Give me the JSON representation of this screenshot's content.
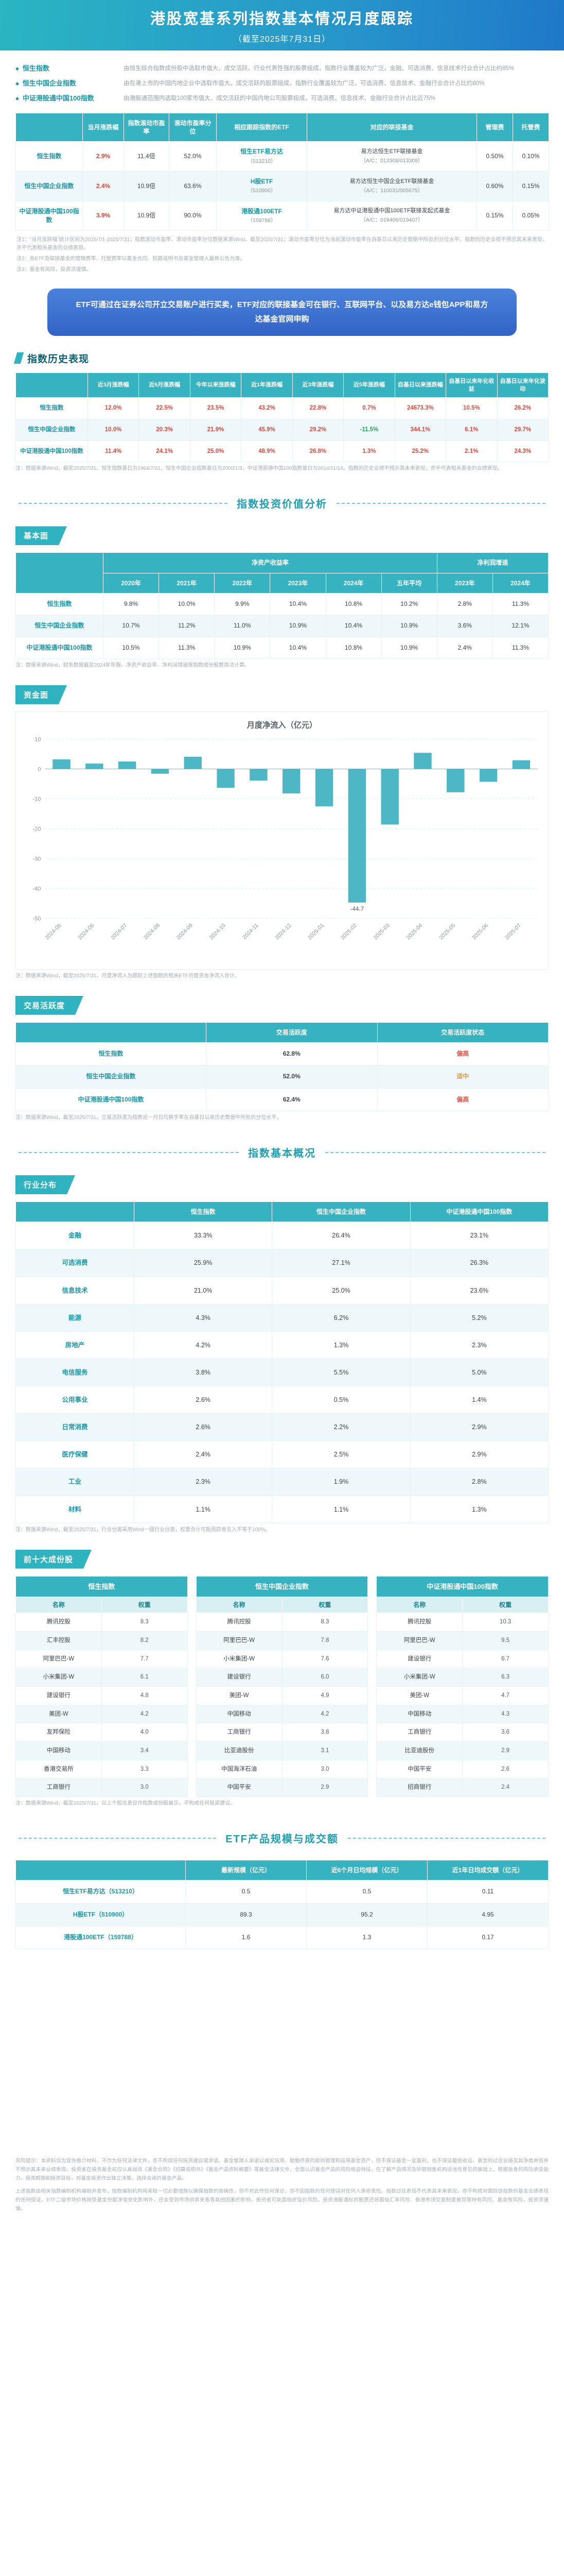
{
  "banner": {
    "title": "港股宽基系列指数基本情况月度跟踪",
    "subtitle": "（截至2025年7月31日）"
  },
  "intro": {
    "items": [
      {
        "term": "恒生指数",
        "desc": "由恒生综合指数成份股中选取市值大、成交活跃、行业代表性强的股票组成，指数行业覆盖较为广泛，金融、可选消费、信息技术行业合计占比约85%"
      },
      {
        "term": "恒生中国企业指数",
        "desc": "由在港上市的中国内地企业中选取市值大、成交活跃的股票组成，指数行业覆盖较为广泛，可选消费、信息技术、金融行业合计占比约80%"
      },
      {
        "term": "中证港股通中国100指数",
        "desc": "由港股通范围内选取100家市值大、成交活跃的中国内地公司股票组成，可选消费、信息技术、金融行业合计占比近75%"
      }
    ]
  },
  "overview": {
    "headers": [
      "当月涨跌幅",
      "指数滚动市盈率",
      "滚动市盈率分位",
      "相应跟踪指数的ETF",
      "对应的联接基金",
      "管理费",
      "托管费"
    ],
    "rows": [
      {
        "name": "恒生指数",
        "chg": "2.9%",
        "pe": "11.4倍",
        "pe_pct": "52.0%",
        "etf": "恒生ETF易方达",
        "etf_code": "（513210）",
        "feeder": "易方达恒生ETF联接基金",
        "feeder_code": "（A/C：013308/013309）",
        "mgmt": "0.50%",
        "cust": "0.10%"
      },
      {
        "name": "恒生中国企业指数",
        "chg": "2.4%",
        "pe": "10.9倍",
        "pe_pct": "63.6%",
        "etf": "H股ETF",
        "etf_code": "（510900）",
        "feeder": "易方达恒生中国企业ETF联接基金",
        "feeder_code": "（A/C：110031/005675）",
        "mgmt": "0.60%",
        "cust": "0.15%"
      },
      {
        "name": "中证港股通中国100指数",
        "chg": "3.9%",
        "pe": "10.9倍",
        "pe_pct": "90.0%",
        "etf": "港股通100ETF",
        "etf_code": "（159788）",
        "feeder": "易方达中证港股通中国100ETF联接发起式基金",
        "feeder_code": "（A/C：019406/019407）",
        "mgmt": "0.15%",
        "cust": "0.05%"
      }
    ],
    "notes": [
      "注1：“当月涨跌幅”统计区间为2025/7/1-2025/7/31；指数滚动市盈率、滚动市盈率分位数据来源Wind，截至2025/7/31；滚动市盈率分位为当前滚动市盈率在自基日以来历史数据中所处的分位水平。指数的历史业绩不预示其未来表现，亦不代表相关基金的业绩表现。",
      "注2：各ETF及联接基金的管理费率、托管费率以基金合同、招募说明书及基金管理人最新公告为准。",
      "注3：基金有风险，投资须谨慎。"
    ]
  },
  "etf_box": {
    "text": "ETF可通过在证券公司开立交易账户进行买卖，ETF对应的联接基金可在银行、互联网平台、以及易方达e钱包APP和易方达基金官网申购"
  },
  "history": {
    "section_title": "指数历史表现",
    "headers": [
      "近3月涨跌幅",
      "近6月涨跌幅",
      "今年以来涨跌幅",
      "近1年涨跌幅",
      "近3年涨跌幅",
      "近5年涨跌幅",
      "自基日以来涨跌幅",
      "自基日以来年化收益",
      "自基日以来年化波动"
    ],
    "rows": [
      {
        "name": "恒生指数",
        "values": [
          "12.0%",
          "22.5%",
          "23.5%",
          "43.2%",
          "22.8%",
          "0.7%",
          "24673.3%",
          "10.5%",
          "26.2%"
        ]
      },
      {
        "name": "恒生中国企业指数",
        "values": [
          "10.0%",
          "20.3%",
          "21.9%",
          "45.9%",
          "29.2%",
          "-11.5%",
          "344.1%",
          "6.1%",
          "29.7%"
        ]
      },
      {
        "name": "中证港股通中国100指数",
        "values": [
          "11.4%",
          "24.1%",
          "25.0%",
          "48.9%",
          "26.8%",
          "1.3%",
          "25.2%",
          "2.1%",
          "24.3%"
        ]
      }
    ],
    "note": "注：数据来源Wind，截至2025/7/31。恒生指数基日为1964/7/31，恒生中国企业指数基日为2000/1/3，中证港股通中国100指数基日为2014/11/14。指数的历史业绩不预示其未来表现，亦不代表相关基金的业绩表现。"
  },
  "dividers": {
    "analysis": "指数投资价值分析",
    "overview": "指数基本概况",
    "products": "ETF产品规模与成交额"
  },
  "fundamentals": {
    "tag": "基本面",
    "group1": "净资产收益率",
    "group2": "净利润增速",
    "years1": [
      "2020年",
      "2021年",
      "2022年",
      "2023年",
      "2024年",
      "五年平均"
    ],
    "years2": [
      "2023年",
      "2024年"
    ],
    "rows": [
      {
        "name": "恒生指数",
        "values": [
          "9.8%",
          "10.0%",
          "9.9%",
          "10.4%",
          "10.8%",
          "10.2%",
          "2.8%",
          "11.3%"
        ]
      },
      {
        "name": "恒生中国企业指数",
        "values": [
          "10.7%",
          "11.2%",
          "11.0%",
          "10.9%",
          "10.4%",
          "10.9%",
          "3.6%",
          "12.1%"
        ]
      },
      {
        "name": "中证港股通中国100指数",
        "values": [
          "10.5%",
          "11.3%",
          "10.9%",
          "10.4%",
          "10.8%",
          "10.9%",
          "2.4%",
          "11.3%"
        ]
      }
    ],
    "note": "注：数据来源Wind，财务数据截至2024年年报。净资产收益率、净利润增速按指数成份股整体法计算。"
  },
  "fund_flow": {
    "tag": "资金面",
    "note": "注：数据来源Wind，截至2025/7/31。月度净流入为跟踪上述指数的相关ETF月度资金净流入合计。"
  },
  "chart_data": {
    "type": "bar",
    "title": "月度净流入（亿元）",
    "categories": [
      "2024-05",
      "2024-06",
      "2024-07",
      "2024-08",
      "2024-09",
      "2024-10",
      "2024-11",
      "2024-12",
      "2025-01",
      "2025-02",
      "2025-03",
      "2025-04",
      "2025-05",
      "2025-06",
      "2025-07"
    ],
    "values": [
      3.2,
      1.8,
      2.5,
      -1.6,
      4.1,
      -6.3,
      -3.9,
      -8.2,
      -12.5,
      -44.7,
      -18.6,
      5.4,
      -7.8,
      -4.3,
      2.9
    ],
    "ylim": [
      -50,
      10
    ],
    "xlabel": "",
    "ylabel": "",
    "grid": true,
    "legend": "none",
    "bar_color": "#4db7c6",
    "annotated_min": "-44.7"
  },
  "activity": {
    "tag": "交易活跃度",
    "headers": [
      "交易活跃度",
      "交易活跃度状态"
    ],
    "rows": [
      {
        "name": "恒生指数",
        "value": "62.8%",
        "status": "偏高"
      },
      {
        "name": "恒生中国企业指数",
        "value": "52.0%",
        "status": "适中"
      },
      {
        "name": "中证港股通中国100指数",
        "value": "62.4%",
        "status": "偏高"
      }
    ],
    "status_colors": {
      "偏高": "#e05a4e",
      "适中": "#e8963c"
    },
    "note": "注：数据来源Wind，截至2025/7/31。交易活跃度为指数近一月日均换手率在自基日以来历史数据中所处的分位水平。"
  },
  "industry": {
    "tag": "行业分布",
    "col_headers": [
      "恒生指数",
      "恒生中国企业指数",
      "中证港股通中国100指数"
    ],
    "rows": [
      {
        "name": "金融",
        "values": [
          "33.3%",
          "26.4%",
          "23.1%"
        ]
      },
      {
        "name": "可选消费",
        "values": [
          "25.9%",
          "27.1%",
          "26.3%"
        ]
      },
      {
        "name": "信息技术",
        "values": [
          "21.0%",
          "25.0%",
          "23.6%"
        ]
      },
      {
        "name": "能源",
        "values": [
          "4.3%",
          "6.2%",
          "5.2%"
        ]
      },
      {
        "name": "房地产",
        "values": [
          "4.2%",
          "1.3%",
          "2.3%"
        ]
      },
      {
        "name": "电信服务",
        "values": [
          "3.8%",
          "5.5%",
          "5.0%"
        ]
      },
      {
        "name": "公用事业",
        "values": [
          "2.6%",
          "0.5%",
          "1.4%"
        ]
      },
      {
        "name": "日常消费",
        "values": [
          "2.6%",
          "2.2%",
          "2.9%"
        ]
      },
      {
        "name": "医疗保健",
        "values": [
          "2.4%",
          "2.5%",
          "2.9%"
        ]
      },
      {
        "name": "工业",
        "values": [
          "2.3%",
          "1.9%",
          "2.8%"
        ]
      },
      {
        "name": "材料",
        "values": [
          "1.1%",
          "1.1%",
          "1.3%"
        ]
      }
    ],
    "note": "注：数据来源Wind，截至2025/7/31。行业分类采用Wind一级行业分类，权重合计可能因四舍五入不等于100%。"
  },
  "holdings": {
    "tag": "前十大成份股",
    "name_header": "名称",
    "weight_header": "权重",
    "groups": [
      {
        "index": "恒生指数",
        "rows": [
          [
            "腾讯控股",
            "8.3"
          ],
          [
            "汇丰控股",
            "8.2"
          ],
          [
            "阿里巴巴-W",
            "7.7"
          ],
          [
            "小米集团-W",
            "6.1"
          ],
          [
            "建设银行",
            "4.8"
          ],
          [
            "美团-W",
            "4.2"
          ],
          [
            "友邦保险",
            "4.0"
          ],
          [
            "中国移动",
            "3.4"
          ],
          [
            "香港交易所",
            "3.3"
          ],
          [
            "工商银行",
            "3.0"
          ]
        ]
      },
      {
        "index": "恒生中国企业指数",
        "rows": [
          [
            "腾讯控股",
            "8.3"
          ],
          [
            "阿里巴巴-W",
            "7.8"
          ],
          [
            "小米集团-W",
            "7.6"
          ],
          [
            "建设银行",
            "6.0"
          ],
          [
            "美团-W",
            "4.9"
          ],
          [
            "中国移动",
            "4.2"
          ],
          [
            "工商银行",
            "3.8"
          ],
          [
            "比亚迪股份",
            "3.1"
          ],
          [
            "中国海洋石油",
            "3.0"
          ],
          [
            "中国平安",
            "2.9"
          ]
        ]
      },
      {
        "index": "中证港股通中国100指数",
        "rows": [
          [
            "腾讯控股",
            "10.3"
          ],
          [
            "阿里巴巴-W",
            "9.5"
          ],
          [
            "建设银行",
            "6.7"
          ],
          [
            "小米集团-W",
            "6.3"
          ],
          [
            "美团-W",
            "4.7"
          ],
          [
            "中国移动",
            "4.3"
          ],
          [
            "工商银行",
            "3.6"
          ],
          [
            "比亚迪股份",
            "2.9"
          ],
          [
            "中国平安",
            "2.6"
          ],
          [
            "招商银行",
            "2.4"
          ]
        ]
      }
    ],
    "note": "注：数据来源Wind，截至2025/7/31。以上个股信息仅作指数成份股展示，不构成任何投资建议。"
  },
  "products": {
    "headers": [
      "最新规模（亿元）",
      "近6个月日均规模（亿元）",
      "近1年日均成交额（亿元）"
    ],
    "rows": [
      {
        "name": "恒生ETF易方达（513210）",
        "values": [
          "0.5",
          "0.5",
          "0.11"
        ]
      },
      {
        "name": "H股ETF（510900）",
        "values": [
          "89.3",
          "95.2",
          "4.95"
        ]
      },
      {
        "name": "港股通100ETF（159788）",
        "values": [
          "1.6",
          "1.3",
          "0.17"
        ]
      }
    ]
  },
  "footer": {
    "p1": "风险提示：本资料仅为宣传推介材料，不作为任何法律文件，亦不构成任何投资建议或承诺。基金管理人承诺以诚实信用、勤勉尽责的原则管理和运用基金资产，但不保证基金一定盈利，也不保证最低收益。基金的过往业绩及其净值高低并不预示其未来业绩表现。投资者在投资基金前应认真阅读《基金合同》《招募说明书》《基金产品资料概要》等基金法律文件，全面认识基金产品的风险收益特征，在了解产品情况及听取销售机构适当性意见的基础上，根据自身的风险承受能力、投资期限和投资目标，对基金投资作出独立决策，选择合适的基金产品。",
    "p2": "上述指数由相关指数编制机构编制并发布，指数编制机构将采取一切必要措施以确保指数的准确性，但不对此作任何保证，亦不因指数的任何错误对任何人承担责任。指数过往表现不代表其未来表现，亦不构成对跟踪该指数的基金业绩表现的任何保证。ETF二级市场价格除受基金份额净值变化影响外，还会受到市场供求关系等其他因素的影响，投资者可能面临折溢价风险。投资港股通标的股票还将面临汇率风险、香港市场交易制度差异等特有风险。基金有风险，投资须谨慎。"
  }
}
